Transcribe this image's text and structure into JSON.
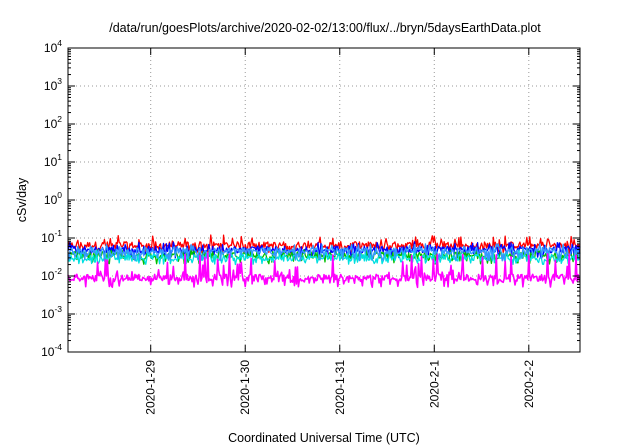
{
  "chart_data": {
    "type": "line",
    "title": "/data/run/goesPlots/archive/2020-02-02/13:00/flux/../bryn/5daysEarthData.plot",
    "xlabel": "Coordinated Universal Time (UTC)",
    "ylabel": "cSv/day",
    "yscale": "log",
    "ylim": [
      0.0001,
      10000
    ],
    "yticks": [
      {
        "base": "10",
        "exp": "-4",
        "value": 0.0001
      },
      {
        "base": "10",
        "exp": "-3",
        "value": 0.001
      },
      {
        "base": "10",
        "exp": "-2",
        "value": 0.01
      },
      {
        "base": "10",
        "exp": "-1",
        "value": 0.1
      },
      {
        "base": "10",
        "exp": "0",
        "value": 1
      },
      {
        "base": "10",
        "exp": "1",
        "value": 10
      },
      {
        "base": "10",
        "exp": "2",
        "value": 100
      },
      {
        "base": "10",
        "exp": "3",
        "value": 1000
      },
      {
        "base": "10",
        "exp": "4",
        "value": 10000
      }
    ],
    "xlim": [
      "2020-01-28 03:00",
      "2020-02-02 13:00"
    ],
    "xticks": [
      "2020-1-29",
      "2020-1-30",
      "2020-1-31",
      "2020-2-1",
      "2020-2-2"
    ],
    "grid": true,
    "series": [
      {
        "color": "#ff0000",
        "values_range": [
          0.04,
          0.12
        ],
        "typical": 0.065
      },
      {
        "color": "#0000ff",
        "values_range": [
          0.03,
          0.08
        ],
        "typical": 0.05
      },
      {
        "color": "#00c000",
        "values_range": [
          0.02,
          0.05
        ],
        "typical": 0.035
      },
      {
        "color": "#00e0e0",
        "values_range": [
          0.02,
          0.05
        ],
        "typical": 0.03
      },
      {
        "color": "#3399ff",
        "values_range": [
          0.025,
          0.07
        ],
        "typical": 0.045
      },
      {
        "color": "#ff00ff",
        "values_range": [
          0.005,
          0.04
        ],
        "typical": 0.009
      }
    ]
  }
}
